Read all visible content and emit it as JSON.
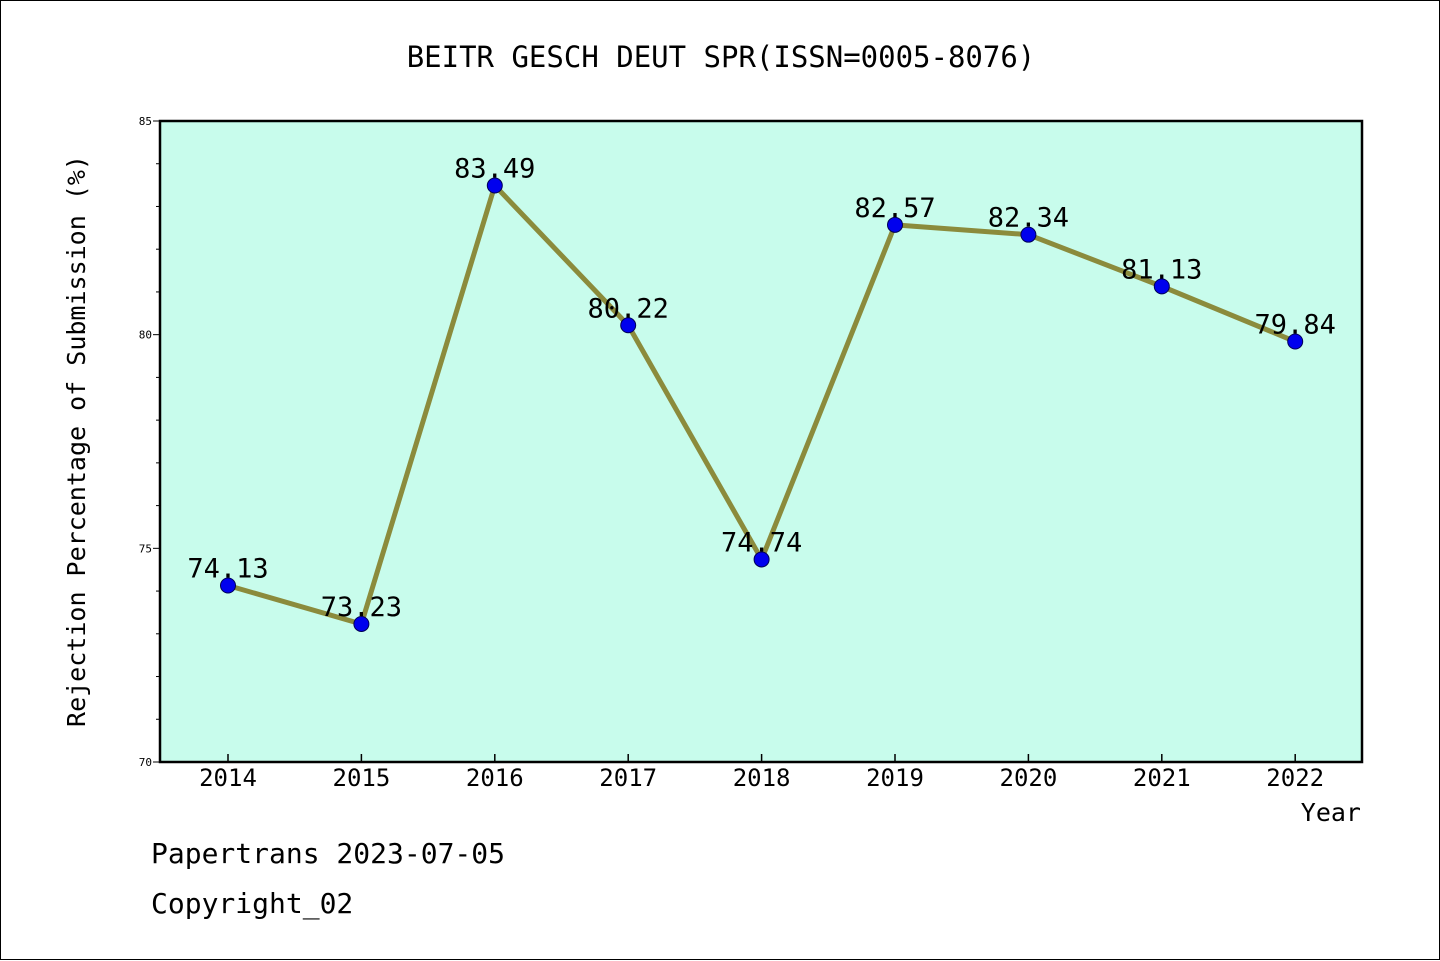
{
  "chart_data": {
    "type": "line",
    "title": "BEITR GESCH DEUT SPR(ISSN=0005-8076)",
    "xlabel": "Year",
    "ylabel": "Rejection Percentage of Submission (%)",
    "categories": [
      "2014",
      "2015",
      "2016",
      "2017",
      "2018",
      "2019",
      "2020",
      "2021",
      "2022"
    ],
    "series": [
      {
        "values": [
          74.13,
          73.23,
          83.49,
          80.22,
          74.74,
          82.57,
          82.34,
          81.13,
          79.84
        ],
        "labels": [
          "74.13",
          "73.23",
          "83.49",
          "80.22",
          "74.74",
          "82.57",
          "82.34",
          "81.13",
          "79.84"
        ]
      }
    ],
    "ylim": [
      70,
      85
    ],
    "yticks": [
      "70",
      "75",
      "80",
      "85"
    ],
    "grid": false,
    "colors": {
      "plot_background": "#c8fcec",
      "line": "#8b8b3c",
      "marker": "#0000ee"
    }
  },
  "footer": {
    "line1": "Papertrans 2023-07-05",
    "line2": "Copyright_02"
  }
}
